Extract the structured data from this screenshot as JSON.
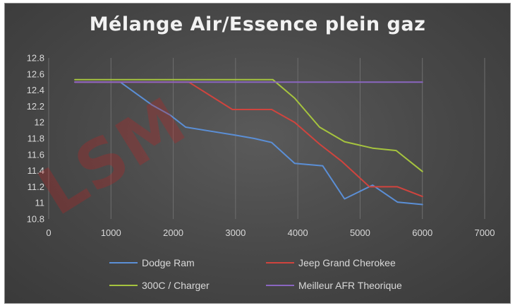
{
  "chart_data": {
    "type": "line",
    "title": "Mélange Air/Essence plein gaz",
    "xlabel": "",
    "ylabel": "",
    "xlim": [
      0,
      7000
    ],
    "ylim": [
      10.8,
      12.8
    ],
    "x_ticks": [
      "0",
      "1000",
      "2000",
      "3000",
      "4000",
      "5000",
      "6000",
      "7000"
    ],
    "y_ticks": [
      "10.8",
      "11",
      "11.2",
      "11.4",
      "11.6",
      "11.8",
      "12",
      "12.2",
      "12.4",
      "12.6",
      "12.8"
    ],
    "grid": "vertical",
    "legend_position": "bottom",
    "series": [
      {
        "name": "Dodge Ram",
        "color": "#5b8fd6",
        "points": [
          [
            420,
            12.5
          ],
          [
            1150,
            12.5
          ],
          [
            1650,
            12.22
          ],
          [
            1950,
            12.09
          ],
          [
            2200,
            11.94
          ],
          [
            2600,
            11.89
          ],
          [
            3000,
            11.84
          ],
          [
            3300,
            11.8
          ],
          [
            3580,
            11.75
          ],
          [
            3950,
            11.49
          ],
          [
            4400,
            11.46
          ],
          [
            4750,
            11.05
          ],
          [
            5200,
            11.22
          ],
          [
            5600,
            11.01
          ],
          [
            6000,
            10.98
          ]
        ]
      },
      {
        "name": "Jeep Grand Cherokee",
        "color": "#d0443e",
        "points": [
          [
            420,
            12.5
          ],
          [
            2250,
            12.5
          ],
          [
            2950,
            12.16
          ],
          [
            3580,
            12.16
          ],
          [
            3950,
            12.0
          ],
          [
            4350,
            11.73
          ],
          [
            4700,
            11.52
          ],
          [
            5150,
            11.2
          ],
          [
            5600,
            11.2
          ],
          [
            6000,
            11.08
          ]
        ]
      },
      {
        "name": "300C / Charger",
        "color": "#a6c43e",
        "points": [
          [
            420,
            12.53
          ],
          [
            3600,
            12.53
          ],
          [
            3950,
            12.3
          ],
          [
            4350,
            11.94
          ],
          [
            4750,
            11.76
          ],
          [
            5200,
            11.68
          ],
          [
            5580,
            11.65
          ],
          [
            6000,
            11.39
          ]
        ]
      },
      {
        "name": "Meilleur AFR Theorique",
        "color": "#8a66c0",
        "points": [
          [
            420,
            12.5
          ],
          [
            6000,
            12.5
          ]
        ]
      }
    ]
  },
  "watermark": "LSM"
}
